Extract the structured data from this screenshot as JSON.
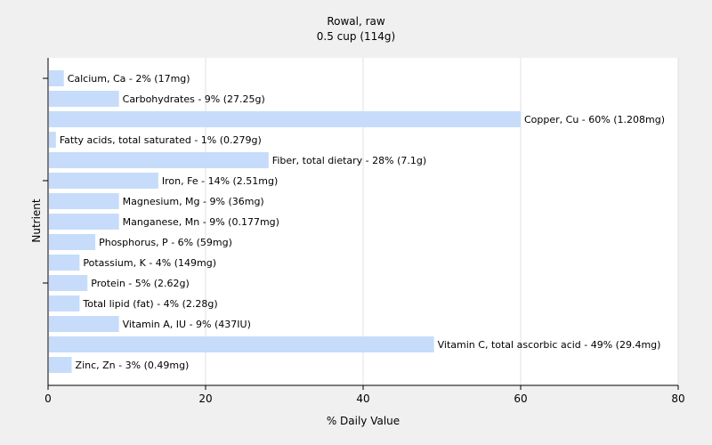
{
  "chart_data": {
    "type": "bar",
    "orientation": "horizontal",
    "title": "Rowal, raw",
    "subtitle": "0.5 cup (114g)",
    "xlabel": "% Daily Value",
    "ylabel": "Nutrient",
    "xlim": [
      0,
      80
    ],
    "xticks": [
      "0",
      "20",
      "40",
      "60",
      "80"
    ],
    "grid": true,
    "bar_color": "#c6dcfa",
    "categories": [
      "Calcium, Ca",
      "Carbohydrates",
      "Copper, Cu",
      "Fatty acids, total saturated",
      "Fiber, total dietary",
      "Iron, Fe",
      "Magnesium, Mg",
      "Manganese, Mn",
      "Phosphorus, P",
      "Potassium, K",
      "Protein",
      "Total lipid (fat)",
      "Vitamin A, IU",
      "Vitamin C, total ascorbic acid",
      "Zinc, Zn"
    ],
    "values": [
      2,
      9,
      60,
      1,
      28,
      14,
      9,
      9,
      6,
      4,
      5,
      4,
      9,
      49,
      3
    ],
    "data_labels": [
      "Calcium, Ca - 2% (17mg)",
      "Carbohydrates - 9% (27.25g)",
      "Copper, Cu - 60% (1.208mg)",
      "Fatty acids, total saturated - 1% (0.279g)",
      "Fiber, total dietary - 28% (7.1g)",
      "Iron, Fe - 14% (2.51mg)",
      "Magnesium, Mg - 9% (36mg)",
      "Manganese, Mn - 9% (0.177mg)",
      "Phosphorus, P - 6% (59mg)",
      "Potassium, K - 4% (149mg)",
      "Protein - 5% (2.62g)",
      "Total lipid (fat) - 4% (2.28g)",
      "Vitamin A, IU - 9% (437IU)",
      "Vitamin C, total ascorbic acid - 49% (29.4mg)",
      "Zinc, Zn - 3% (0.49mg)"
    ]
  }
}
